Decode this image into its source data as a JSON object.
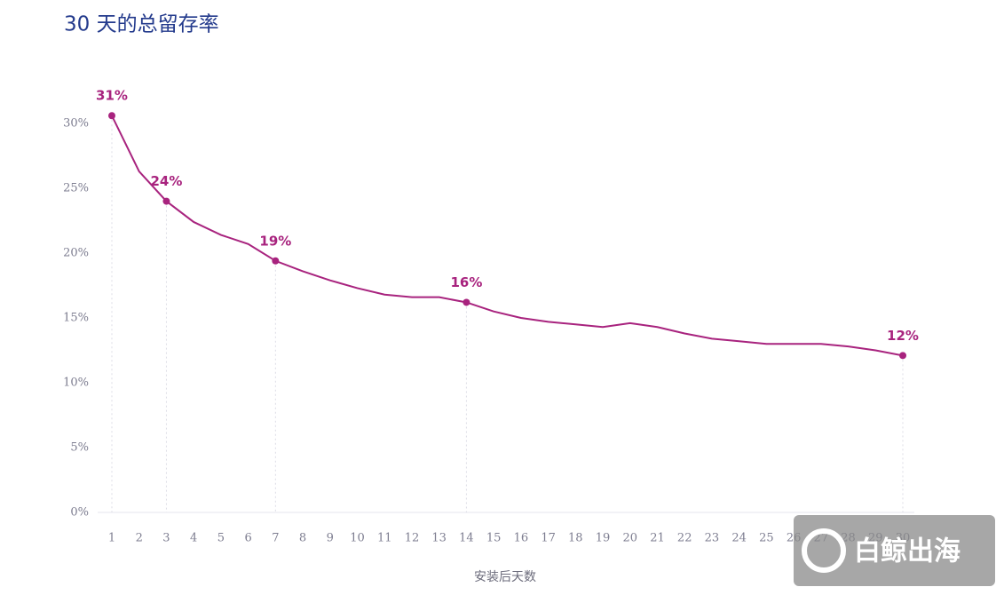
{
  "chart_data": {
    "type": "line",
    "title": "30 天的总留存率",
    "x_label": "安装后天数",
    "watermark": "白鲸出海",
    "categories": [
      "1",
      "2",
      "3",
      "4",
      "5",
      "6",
      "7",
      "8",
      "9",
      "10",
      "11",
      "12",
      "13",
      "14",
      "15",
      "16",
      "17",
      "18",
      "19",
      "20",
      "21",
      "22",
      "23",
      "24",
      "25",
      "26",
      "27",
      "28",
      "29",
      "30"
    ],
    "series": [
      {
        "name": "总留存率",
        "color": "#a8237e",
        "values": [
          30.6,
          26.3,
          24.0,
          22.4,
          21.4,
          20.7,
          19.4,
          18.6,
          17.9,
          17.3,
          16.8,
          16.6,
          16.6,
          16.2,
          15.5,
          15.0,
          14.7,
          14.5,
          14.3,
          14.6,
          14.3,
          13.8,
          13.4,
          13.2,
          13.0,
          13.0,
          13.0,
          12.8,
          12.5,
          12.1
        ],
        "value_labels": [
          "31%",
          null,
          "24%",
          null,
          null,
          null,
          "19%",
          null,
          null,
          null,
          null,
          null,
          null,
          "16%",
          null,
          null,
          null,
          null,
          null,
          null,
          null,
          null,
          null,
          null,
          null,
          null,
          null,
          null,
          null,
          "12%"
        ]
      }
    ],
    "ylim": [
      0,
      30
    ],
    "yticks": [
      {
        "value": 0,
        "label": "0%"
      },
      {
        "value": 5,
        "label": "5%"
      },
      {
        "value": 10,
        "label": "10%"
      },
      {
        "value": 15,
        "label": "15%"
      },
      {
        "value": 20,
        "label": "20%"
      },
      {
        "value": 25,
        "label": "25%"
      },
      {
        "value": 30,
        "label": "30%"
      }
    ]
  }
}
